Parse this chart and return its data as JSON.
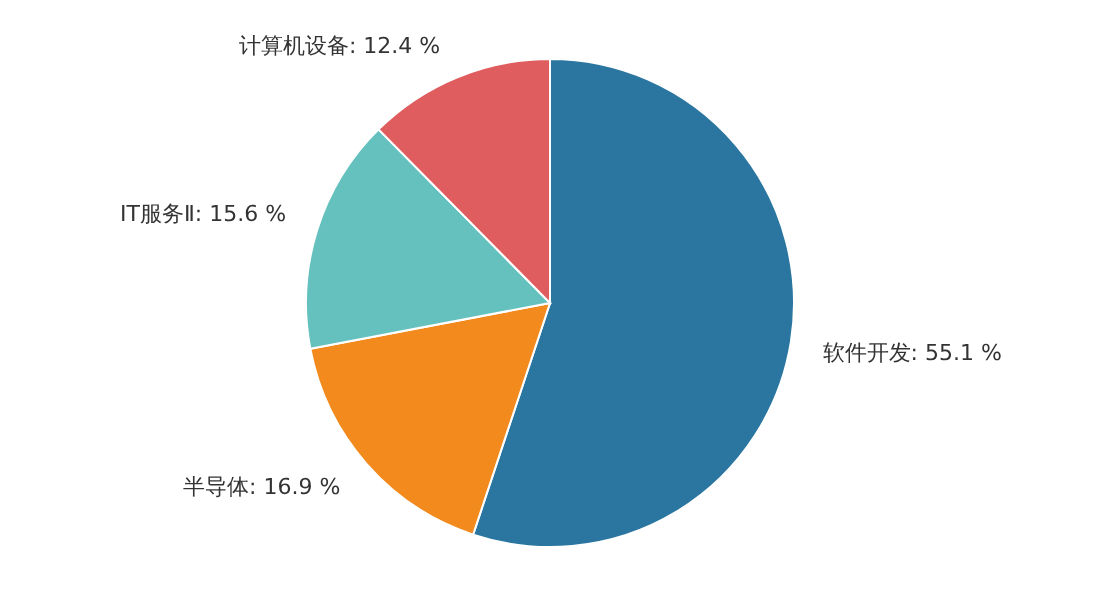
{
  "chart_data": {
    "type": "pie",
    "categories": [
      "软件开发",
      "半导体",
      "IT服务Ⅱ",
      "计算机设备"
    ],
    "values": [
      55.1,
      16.9,
      15.6,
      12.4
    ],
    "value_labels": [
      "55.1 %",
      "16.9 %",
      "15.6 %",
      "12.4 %"
    ],
    "colors": [
      "#2a76a0",
      "#f28a1e",
      "#65c1be",
      "#e05d5f"
    ]
  }
}
